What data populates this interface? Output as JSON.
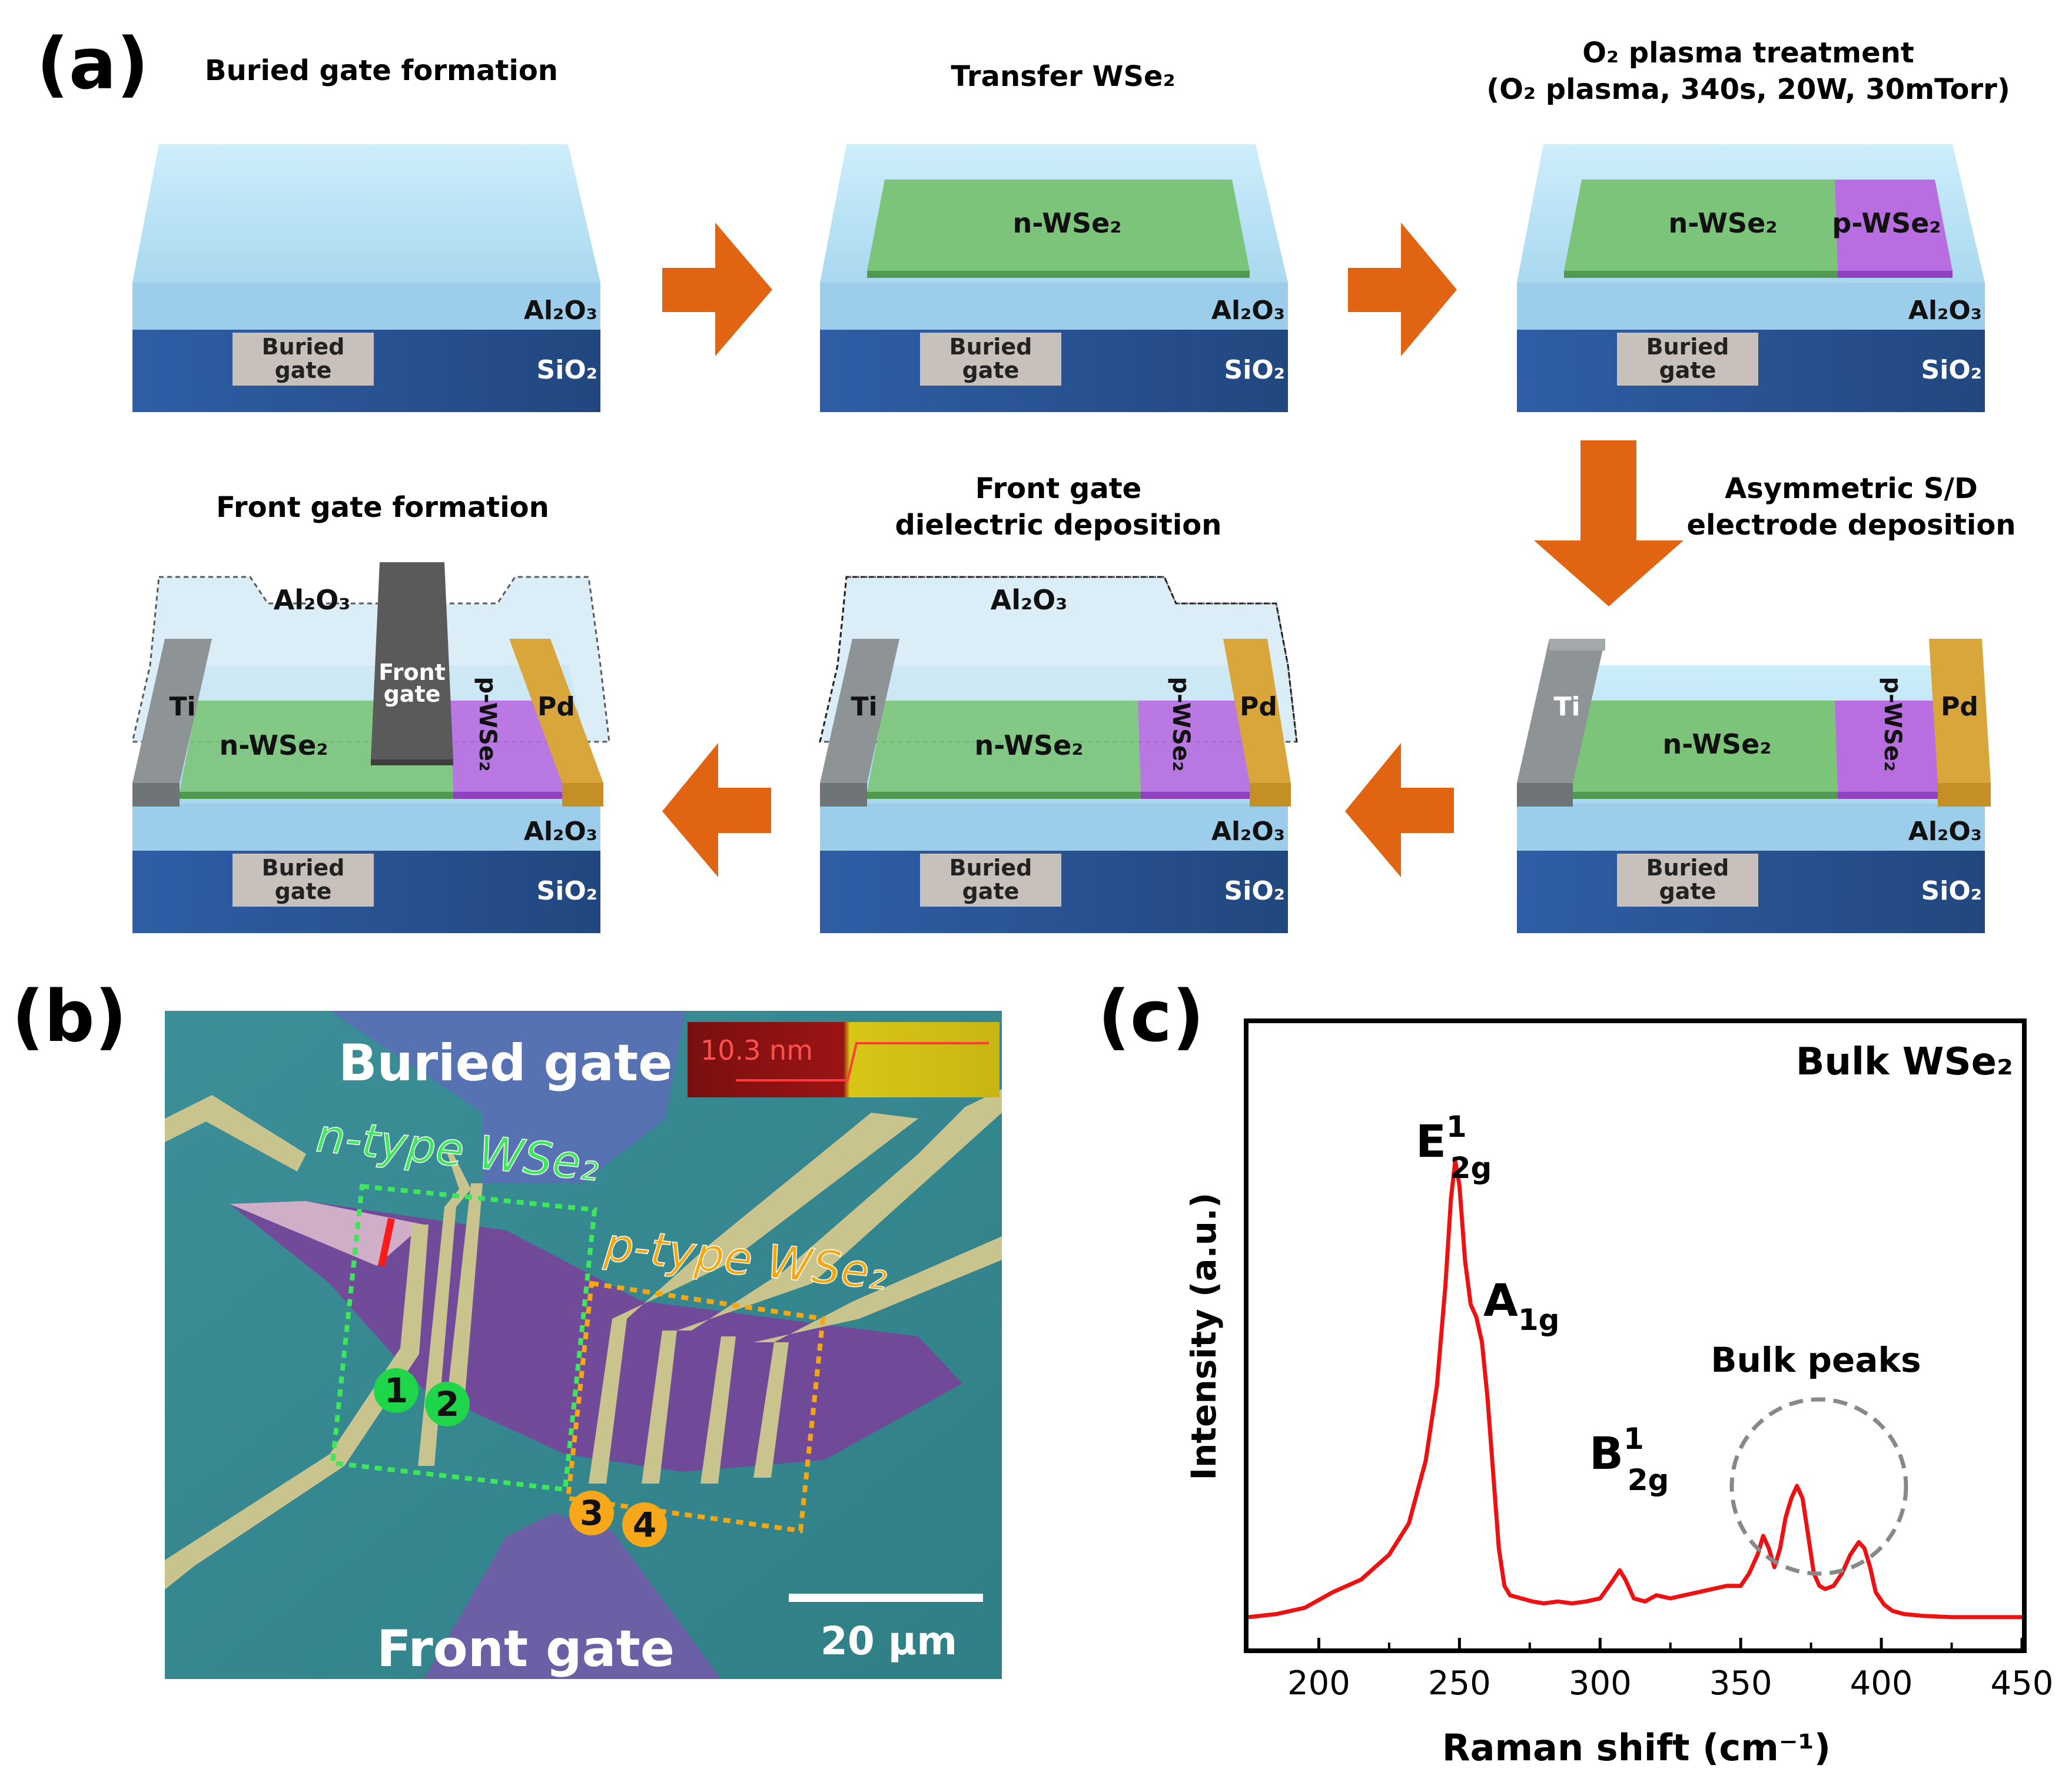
{
  "panel_a": {
    "label": "(a)",
    "steps": [
      {
        "title": "Buried gate formation"
      },
      {
        "title": "Transfer WSe₂"
      },
      {
        "title1": "O₂ plasma treatment",
        "title2": "(O₂ plasma, 340s, 20W, 30mTorr)"
      },
      {
        "title1": "Asymmetric S/D",
        "title2": "electrode deposition"
      },
      {
        "title1": "Front gate",
        "title2": "dielectric deposition"
      },
      {
        "title": "Front gate formation"
      }
    ],
    "labels": {
      "al2o3": "Al₂O₃",
      "sio2": "SiO₂",
      "buried_gate_1": "Buried",
      "buried_gate_2": "gate",
      "n_wse2": "n-WSe₂",
      "p_wse2": "p-WSe₂",
      "ti": "Ti",
      "pd": "Pd",
      "front_gate_1": "Front",
      "front_gate_2": "gate"
    },
    "colors": {
      "al2o3": "#bfe6f7",
      "sio2": "#2d5c9e",
      "n_wse2": "#7cc47a",
      "p_wse2": "#b86de0",
      "ti": "#8e9396",
      "pd": "#e2b24a",
      "arrow": "#e06411",
      "front_gate": "#5a5a5a"
    }
  },
  "panel_b": {
    "label": "(b)",
    "buried_gate": "Buried gate",
    "front_gate": "Front gate",
    "n_type": "n-type WSe₂",
    "p_type": "p-type WSe₂",
    "thickness": "10.3 nm",
    "scale_bar": "20 μm",
    "contacts": [
      "1",
      "2",
      "3",
      "4"
    ],
    "colors": {
      "n_type": "#3de65a",
      "p_type": "#f5a712",
      "contact_n": "#1fd54a",
      "contact_p": "#f6a81a"
    }
  },
  "chart_data": {
    "type": "line",
    "label": "(c)",
    "title": "Bulk WSe₂",
    "xlabel": "Raman shift (cm⁻¹)",
    "ylabel": "Intensity (a.u.)",
    "xlim": [
      175,
      450
    ],
    "ylim": [
      0,
      1
    ],
    "xticks": [
      "200",
      "250",
      "300",
      "350",
      "400",
      "450"
    ],
    "series": [
      {
        "name": "Bulk WSe₂",
        "color": "#ee1111",
        "x": [
          175,
          185,
          195,
          205,
          215,
          225,
          232,
          238,
          242,
          245,
          247,
          248.5,
          250,
          252,
          254,
          256,
          258,
          260,
          262,
          264,
          266,
          268,
          272,
          276,
          280,
          285,
          290,
          295,
          300,
          304,
          307,
          309,
          312,
          316,
          320,
          325,
          330,
          335,
          340,
          345,
          350,
          353,
          356,
          358,
          360,
          362,
          364,
          366,
          368,
          370,
          372,
          374,
          376,
          378,
          380,
          383,
          386,
          389,
          392,
          394,
          396,
          398,
          401,
          404,
          408,
          415,
          425,
          435,
          450
        ],
        "y": [
          0.05,
          0.055,
          0.065,
          0.09,
          0.11,
          0.15,
          0.2,
          0.3,
          0.42,
          0.58,
          0.72,
          0.78,
          0.74,
          0.62,
          0.55,
          0.53,
          0.49,
          0.4,
          0.28,
          0.16,
          0.1,
          0.085,
          0.08,
          0.075,
          0.072,
          0.075,
          0.072,
          0.075,
          0.08,
          0.105,
          0.125,
          0.11,
          0.08,
          0.075,
          0.085,
          0.08,
          0.085,
          0.09,
          0.095,
          0.1,
          0.1,
          0.12,
          0.15,
          0.18,
          0.16,
          0.13,
          0.16,
          0.21,
          0.24,
          0.26,
          0.24,
          0.18,
          0.12,
          0.1,
          0.095,
          0.1,
          0.12,
          0.15,
          0.17,
          0.16,
          0.13,
          0.09,
          0.07,
          0.06,
          0.055,
          0.052,
          0.05,
          0.05,
          0.05
        ]
      }
    ],
    "annotations": {
      "e2g_main": "E",
      "e2g_sup": "1",
      "e2g_sub": "2g",
      "a1g_main": "A",
      "a1g_sub": "1g",
      "b2g_main": "B",
      "b2g_sup": "1",
      "b2g_sub": "2g",
      "bulk_peaks": "Bulk peaks"
    }
  }
}
